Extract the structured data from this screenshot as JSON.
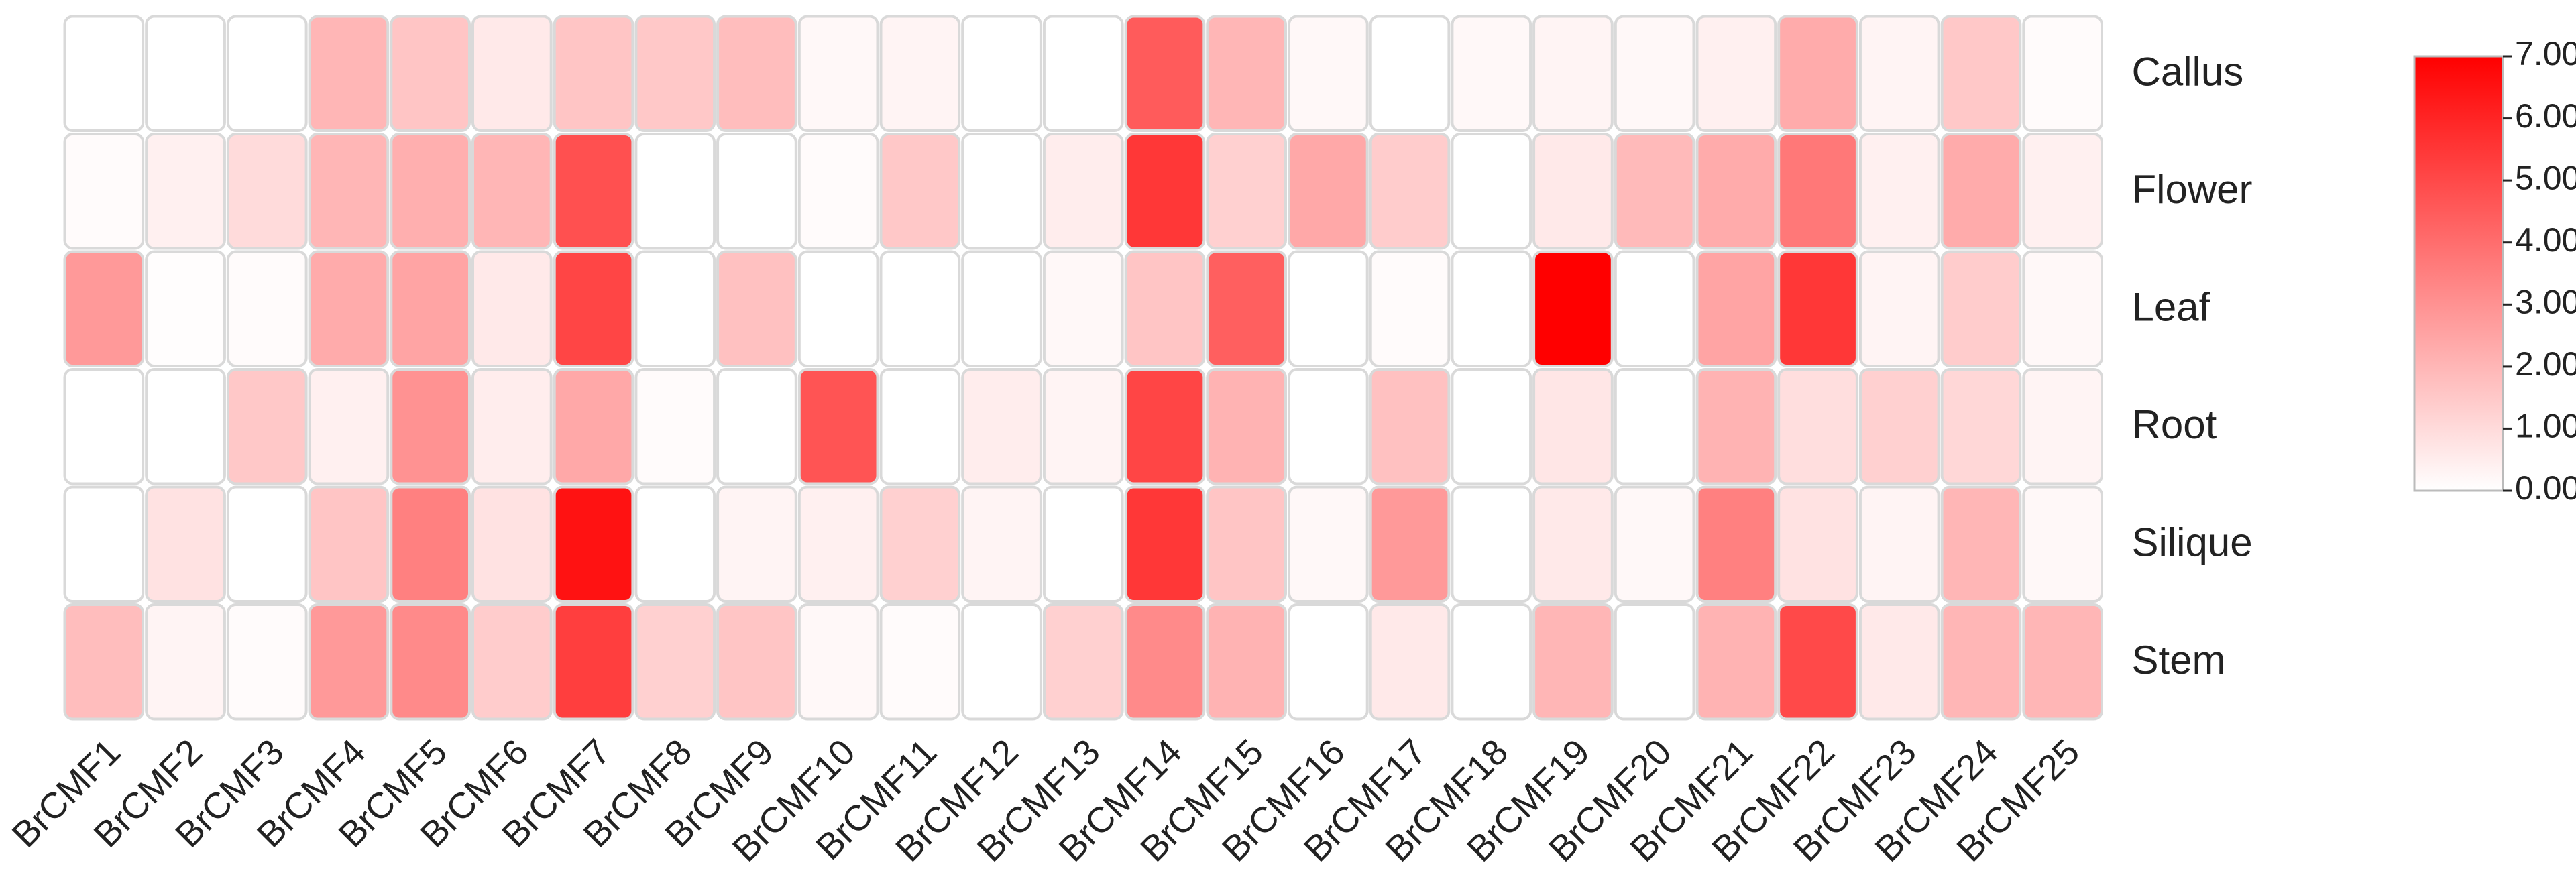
{
  "chart_data": {
    "type": "heatmap",
    "title": "",
    "xlabel": "",
    "ylabel": "",
    "columns": [
      "BrCMF1",
      "BrCMF2",
      "BrCMF3",
      "BrCMF4",
      "BrCMF5",
      "BrCMF6",
      "BrCMF7",
      "BrCMF8",
      "BrCMF9",
      "BrCMF10",
      "BrCMF11",
      "BrCMF12",
      "BrCMF13",
      "BrCMF14",
      "BrCMF15",
      "BrCMF16",
      "BrCMF17",
      "BrCMF18",
      "BrCMF19",
      "BrCMF20",
      "BrCMF21",
      "BrCMF22",
      "BrCMF23",
      "BrCMF24",
      "BrCMF25"
    ],
    "rows": [
      "Callus",
      "Flower",
      "Leaf",
      "Root",
      "Silique",
      "Stem"
    ],
    "values": [
      [
        0.0,
        0.0,
        0.0,
        2.0,
        1.6,
        0.6,
        1.6,
        1.5,
        1.8,
        0.2,
        0.3,
        0.0,
        0.0,
        4.5,
        2.0,
        0.2,
        0.0,
        0.2,
        0.3,
        0.2,
        0.4,
        2.3,
        0.3,
        1.5,
        0.1
      ],
      [
        0.1,
        0.4,
        1.0,
        2.0,
        2.2,
        2.0,
        4.8,
        0.0,
        0.0,
        0.1,
        1.5,
        0.0,
        0.5,
        5.5,
        1.3,
        2.4,
        1.4,
        0.0,
        0.6,
        1.9,
        2.3,
        3.7,
        0.4,
        2.3,
        0.4
      ],
      [
        2.8,
        0.05,
        0.1,
        2.3,
        2.5,
        0.6,
        5.1,
        0.0,
        1.7,
        0.0,
        0.0,
        0.0,
        0.2,
        1.6,
        4.4,
        0.0,
        0.1,
        0.0,
        7.0,
        0.0,
        2.5,
        5.5,
        0.3,
        1.4,
        0.2
      ],
      [
        0.0,
        0.0,
        1.5,
        0.4,
        3.0,
        0.5,
        2.4,
        0.1,
        0.0,
        4.7,
        0.0,
        0.5,
        0.3,
        5.1,
        2.1,
        0.0,
        1.7,
        0.0,
        0.7,
        0.0,
        2.1,
        0.9,
        1.3,
        1.1,
        0.3
      ],
      [
        0.0,
        0.8,
        0.0,
        1.6,
        3.5,
        0.8,
        6.5,
        0.0,
        0.3,
        0.4,
        1.3,
        0.3,
        0.0,
        5.5,
        1.6,
        0.2,
        2.8,
        0.0,
        0.6,
        0.2,
        3.5,
        0.8,
        0.3,
        2.0,
        0.2
      ],
      [
        1.8,
        0.3,
        0.1,
        2.8,
        3.2,
        1.4,
        5.3,
        1.3,
        1.6,
        0.2,
        0.1,
        0.0,
        1.3,
        3.2,
        2.1,
        0.0,
        0.6,
        0.0,
        2.0,
        0.0,
        2.1,
        5.0,
        0.6,
        2.0,
        2.0
      ]
    ],
    "colorscale": {
      "min": 0.0,
      "max": 7.0,
      "low_color": "#ffffff",
      "high_color": "#ff0000",
      "ticks": [
        "0.00",
        "1.00",
        "2.00",
        "3.00",
        "4.00",
        "5.00",
        "6.00",
        "7.00"
      ]
    },
    "legend_position": "right"
  }
}
